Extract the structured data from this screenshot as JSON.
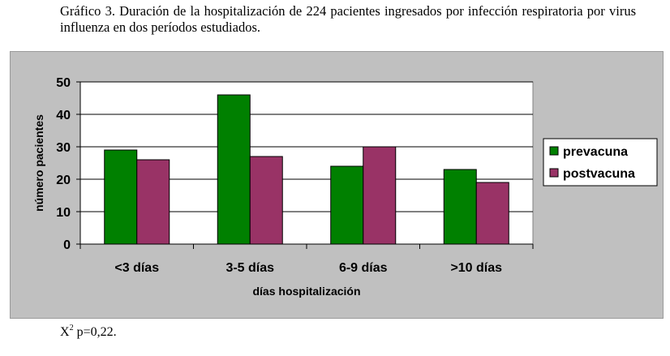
{
  "caption": {
    "text": "Gráfico 3. Duración de la hospitalización de 224 pacientes ingresados por infección respiratoria por virus influenza en dos períodos estudiados."
  },
  "chart_data": {
    "type": "bar",
    "title": "",
    "xlabel": "días hospitalización",
    "ylabel": "número pacientes",
    "categories": [
      "<3 días",
      "3-5 días",
      "6-9 días",
      ">10 días"
    ],
    "series": [
      {
        "name": "prevacuna",
        "values": [
          29,
          46,
          24,
          23
        ],
        "color": "#008000"
      },
      {
        "name": "postvacuna",
        "values": [
          26,
          27,
          30,
          19
        ],
        "color": "#993366"
      }
    ],
    "ylim": [
      0,
      50
    ],
    "yticks": [
      0,
      10,
      20,
      30,
      40,
      50
    ],
    "grid": true,
    "legend": "right",
    "plot_background": "#ffffff",
    "frame_background": "#c0c0c0"
  },
  "footnote": {
    "chi_symbol": "X",
    "superscript": "2",
    "text": " p=0,22."
  }
}
